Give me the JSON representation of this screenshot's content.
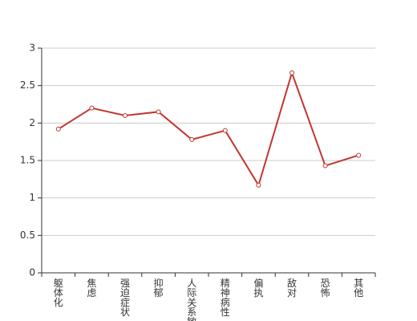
{
  "chart_data": {
    "type": "line",
    "categories": [
      "躯体化",
      "焦虑",
      "强迫症状",
      "抑郁",
      "人际关系敏感",
      "精神病性",
      "偏执",
      "敌对",
      "恐怖",
      "其他"
    ],
    "series": [
      {
        "color": "#c23531",
        "values": [
          1.92,
          2.2,
          2.1,
          2.15,
          1.78,
          1.9,
          1.17,
          2.67,
          1.43,
          1.57
        ]
      }
    ],
    "ylim": [
      0,
      3
    ],
    "yticks": [
      0,
      0.5,
      1,
      1.5,
      2,
      2.5,
      3
    ],
    "grid": true
  }
}
